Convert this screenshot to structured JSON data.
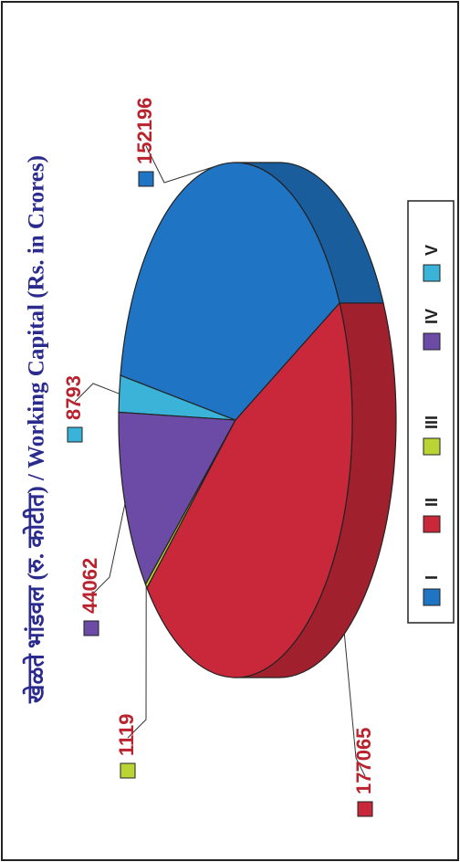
{
  "chart_data": {
    "type": "pie3d",
    "title": "खेळते भांडवल (रु. कोटीत) / Working Capital (Rs. in Crores)",
    "categories": [
      "I",
      "II",
      "III",
      "IV",
      "V"
    ],
    "values": [
      152196,
      177065,
      1119,
      44062,
      8793
    ],
    "colors": [
      "#1f74c4",
      "#c8283a",
      "#b9d433",
      "#6b4ba6",
      "#3bb3d8"
    ],
    "legend": "bottom"
  }
}
